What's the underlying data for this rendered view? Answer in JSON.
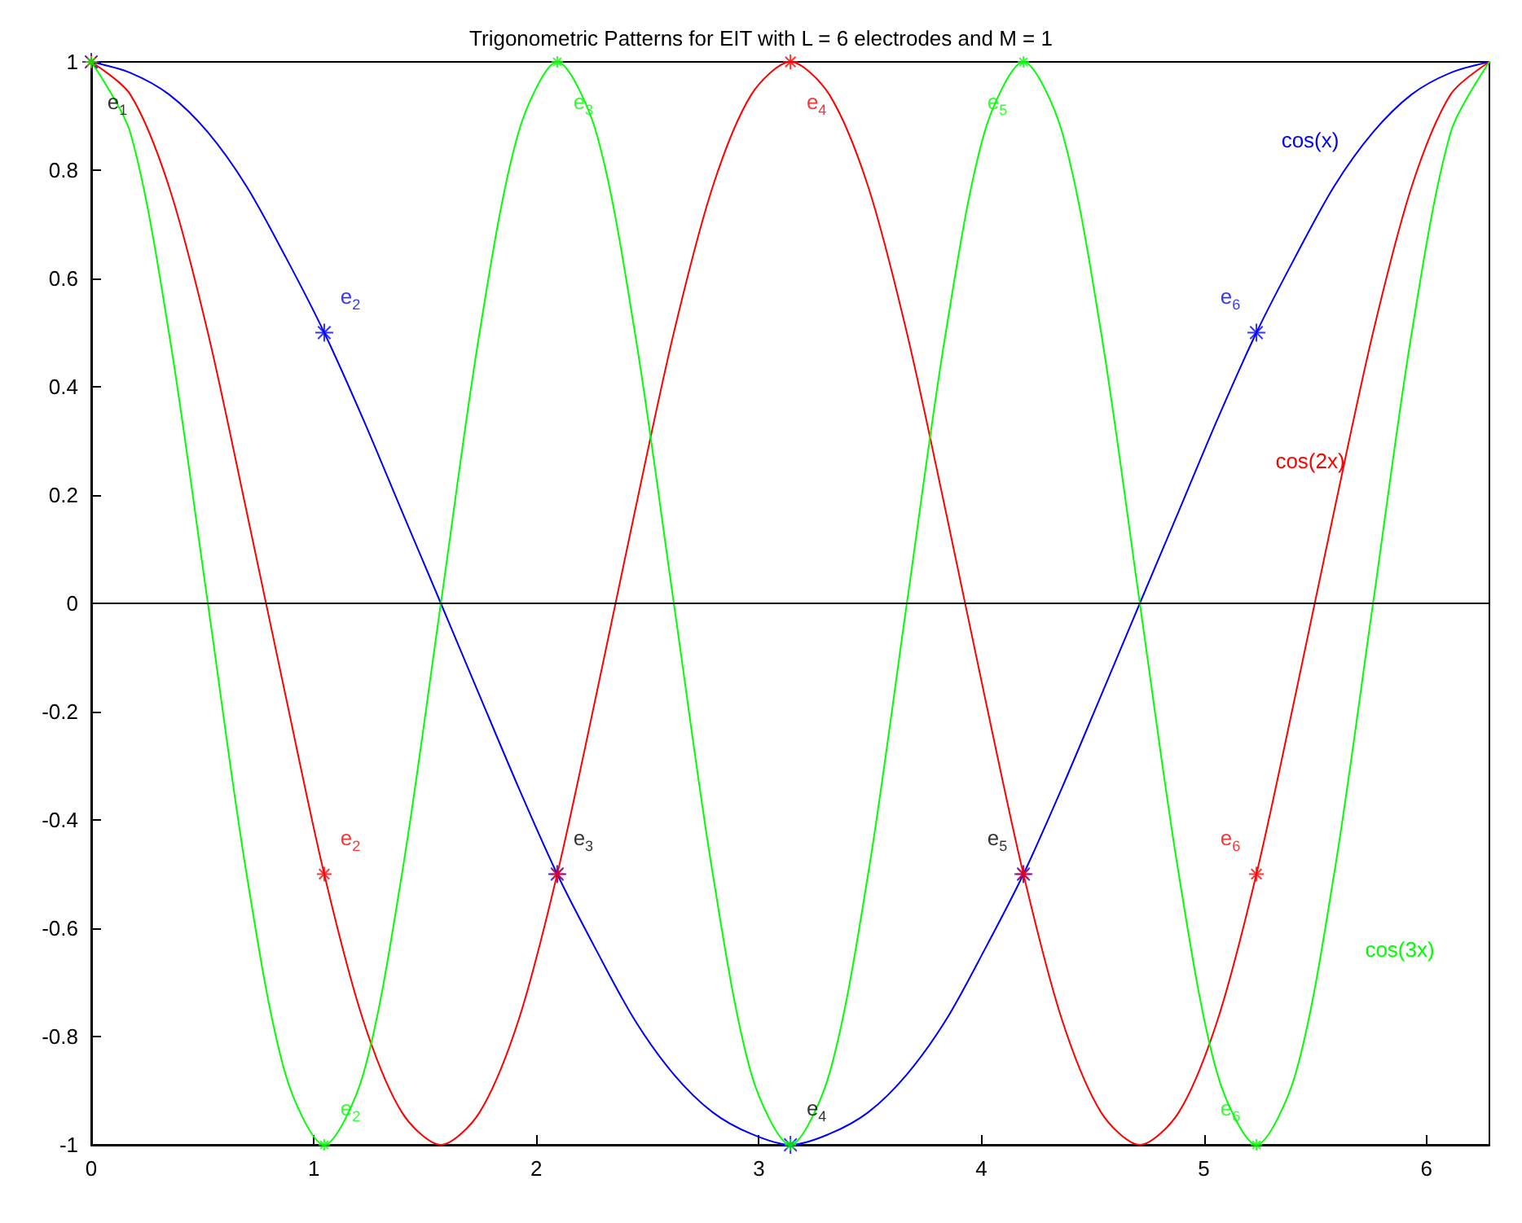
{
  "chart_data": {
    "type": "line",
    "title": "Trigonometric Patterns for EIT with L = 6 electrodes and M = 1",
    "x": [
      0,
      0.175,
      0.349,
      0.524,
      0.698,
      0.873,
      1.047,
      1.222,
      1.396,
      1.571,
      1.745,
      1.92,
      2.094,
      2.269,
      2.443,
      2.618,
      2.793,
      2.967,
      3.142,
      3.316,
      3.491,
      3.665,
      3.84,
      4.014,
      4.189,
      4.363,
      4.538,
      4.712,
      4.887,
      5.061,
      5.236,
      5.411,
      5.585,
      5.76,
      5.934,
      6.109,
      6.283
    ],
    "series": [
      {
        "name": "cos(x)",
        "color": "#0000ff",
        "values": [
          1,
          0.98,
          0.94,
          0.87,
          0.77,
          0.64,
          0.5,
          0.34,
          0.17,
          0,
          -0.17,
          -0.34,
          -0.5,
          -0.64,
          -0.77,
          -0.87,
          -0.94,
          -0.98,
          -1,
          -0.98,
          -0.94,
          -0.87,
          -0.77,
          -0.64,
          -0.5,
          -0.34,
          -0.17,
          0,
          0.17,
          0.34,
          0.5,
          0.64,
          0.77,
          0.87,
          0.94,
          0.98,
          1
        ]
      },
      {
        "name": "cos(2x)",
        "color": "#ff0000",
        "values": [
          1,
          0.94,
          0.77,
          0.5,
          0.17,
          -0.17,
          -0.5,
          -0.77,
          -0.94,
          -1,
          -0.94,
          -0.77,
          -0.5,
          -0.17,
          0.17,
          0.5,
          0.77,
          0.94,
          1,
          0.94,
          0.77,
          0.5,
          0.17,
          -0.17,
          -0.5,
          -0.77,
          -0.94,
          -1,
          -0.94,
          -0.77,
          -0.5,
          -0.17,
          0.17,
          0.5,
          0.77,
          0.94,
          1
        ]
      },
      {
        "name": "cos(3x)",
        "color": "#00ff00",
        "values": [
          1,
          0.87,
          0.5,
          0,
          -0.5,
          -0.87,
          -1,
          -0.87,
          -0.5,
          0,
          0.5,
          0.87,
          1,
          0.87,
          0.5,
          0,
          -0.5,
          -0.87,
          -1,
          -0.87,
          -0.5,
          0,
          0.5,
          0.87,
          1,
          0.87,
          0.5,
          0,
          -0.5,
          -0.87,
          -1,
          -0.87,
          -0.5,
          0,
          0.5,
          0.87,
          1
        ]
      },
      {
        "type": "scatter",
        "marker": "cross",
        "color": "#0000ff",
        "x": [
          0,
          1.047,
          2.094,
          3.142,
          4.189,
          5.236
        ],
        "values": [
          1,
          0.5,
          -0.5,
          -1,
          -0.5,
          0.5
        ]
      },
      {
        "type": "scatter",
        "marker": "cross",
        "color": "#ff0000",
        "x": [
          0,
          1.047,
          2.094,
          3.142,
          4.189,
          5.236
        ],
        "values": [
          1,
          -0.5,
          -0.5,
          1,
          -0.5,
          -0.5
        ]
      },
      {
        "type": "scatter",
        "marker": "cross",
        "color": "#00ff00",
        "x": [
          0,
          1.047,
          2.094,
          3.142,
          4.189,
          5.236
        ],
        "values": [
          1,
          -1,
          1,
          -1,
          1,
          -1
        ]
      }
    ],
    "annotations": [
      {
        "text": "e$_{1}$",
        "x": 0,
        "y": 1
      },
      {
        "text": "e$_{2}$",
        "x": 1.047,
        "y": 0.5
      },
      {
        "text": "e$_{3}$",
        "x": 2.094,
        "y": 1
      },
      {
        "text": "e$_{4}$",
        "x": 3.142,
        "y": 1
      },
      {
        "text": "e$_{5}$",
        "x": 4.189,
        "y": 1
      },
      {
        "text": "e$_{6}$",
        "x": 5.236,
        "y": 0.5
      },
      {
        "text": "e$_{2}$",
        "x": 1.047,
        "y": -0.5
      },
      {
        "text": "e$_{3}$",
        "x": 2.094,
        "y": -0.5
      },
      {
        "text": "e$_{5}$",
        "x": 4.189,
        "y": -0.5
      },
      {
        "text": "e$_{6}$",
        "x": 5.236,
        "y": -0.5
      },
      {
        "text": "e$_{2}$",
        "x": 1.047,
        "y": -1
      },
      {
        "text": "e$_{4}$",
        "x": 3.142,
        "y": -1
      },
      {
        "text": "e$_{6}$",
        "x": 5.236,
        "y": -1
      }
    ],
    "ref_lines": [
      {
        "axis": "y",
        "value": 0,
        "color": "#000000"
      }
    ],
    "xlim": [
      0,
      6.283
    ],
    "xticks": [
      0,
      1,
      2,
      3,
      4,
      5,
      6
    ],
    "ylim": [
      -1,
      1
    ],
    "yticks": [
      -1,
      -0.8,
      -0.6,
      -0.4,
      -0.2,
      0,
      0.2,
      0.4,
      0.6,
      0.8,
      1
    ],
    "grid": false,
    "legend": false,
    "marker": "none",
    "line_style": "solid"
  }
}
